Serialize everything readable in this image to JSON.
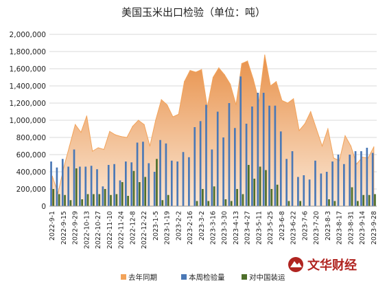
{
  "chart_data": {
    "type": "bar",
    "title": "美国玉米出口检验（单位：吨）",
    "ylim": [
      0,
      2000000
    ],
    "yticks": [
      0,
      200000,
      400000,
      600000,
      800000,
      1000000,
      1200000,
      1400000,
      1600000,
      1800000,
      2000000
    ],
    "ytick_labels": [
      "0",
      "200,000",
      "400,000",
      "600,000",
      "800,000",
      "1,000,000",
      "1,200,000",
      "1,400,000",
      "1,600,000",
      "1,800,000",
      "2,000,000"
    ],
    "grid": true,
    "legend_position": "bottom",
    "x": [
      "2022-9-1",
      "2022-9-8",
      "2022-9-15",
      "2022-9-22",
      "2022-9-29",
      "2022-10-6",
      "2022-10-13",
      "2022-10-20",
      "2022-10-27",
      "2022-11-3",
      "2022-11-10",
      "2022-11-17",
      "2022-11-24",
      "2022-12-1",
      "2022-12-8",
      "2022-12-15",
      "2022-12-22",
      "2022-12-29",
      "2023-1-5",
      "2023-1-12",
      "2023-1-19",
      "2023-1-26",
      "2023-2-2",
      "2023-2-9",
      "2023-2-16",
      "2023-2-23",
      "2023-3-2",
      "2023-3-9",
      "2023-3-16",
      "2023-3-23",
      "2023-3-30",
      "2023-4-6",
      "2023-4-13",
      "2023-4-20",
      "2023-4-27",
      "2023-5-4",
      "2023-5-11",
      "2023-5-18",
      "2023-5-25",
      "2023-6-1",
      "2023-6-8",
      "2023-6-15",
      "2023-6-22",
      "2023-6-29",
      "2023-7-6",
      "2023-7-13",
      "2023-7-20",
      "2023-7-27",
      "2023-8-3",
      "2023-8-10",
      "2023-8-17",
      "2023-8-24",
      "2023-8-31",
      "2023-9-7",
      "2023-9-14",
      "2023-9-21",
      "2023-9-28"
    ],
    "xtick_labels": [
      "2022-9-1",
      "2022-9-15",
      "2022-9-29",
      "2022-10-13",
      "2022-10-27",
      "2022-11-10",
      "2022-11-24",
      "2022-12-8",
      "2022-12-22",
      "2023-1-5",
      "2023-1-19",
      "2023-2-2",
      "2023-2-16",
      "2023-3-2",
      "2023-3-16",
      "2023-3-30",
      "2023-4-13",
      "2023-4-27",
      "2023-5-11",
      "2023-5-25",
      "2023-6-8",
      "2023-6-22",
      "2023-7-6",
      "2023-7-20",
      "2023-8-3",
      "2023-8-17",
      "2023-8-31",
      "2023-9-14",
      "2023-9-28"
    ],
    "series": [
      {
        "name": "去年同期",
        "kind": "area",
        "color": "#f2a35a",
        "values": [
          350000,
          150000,
          450000,
          700000,
          950000,
          860000,
          1050000,
          640000,
          680000,
          660000,
          870000,
          830000,
          810000,
          800000,
          930000,
          1000000,
          950000,
          700000,
          1000000,
          1240000,
          1180000,
          1040000,
          1070000,
          1450000,
          1580000,
          1560000,
          1590000,
          1150000,
          1500000,
          1610000,
          1530000,
          1420000,
          1180000,
          1660000,
          1690000,
          1480000,
          1220000,
          1760000,
          1400000,
          1450000,
          1230000,
          1200000,
          1250000,
          880000,
          960000,
          1100000,
          900000,
          700000,
          900000,
          560000,
          530000,
          820000,
          700000,
          490000,
          570000,
          560000,
          690000
        ]
      },
      {
        "name": "本周检验量",
        "kind": "bar",
        "color": "#4a78b6",
        "values": [
          520000,
          450000,
          550000,
          460000,
          660000,
          460000,
          460000,
          470000,
          430000,
          230000,
          480000,
          490000,
          300000,
          520000,
          510000,
          740000,
          750000,
          500000,
          400000,
          770000,
          730000,
          530000,
          520000,
          630000,
          570000,
          920000,
          990000,
          1180000,
          660000,
          1100000,
          800000,
          1200000,
          910000,
          1510000,
          960000,
          1160000,
          1320000,
          1320000,
          1170000,
          1170000,
          870000,
          550000,
          640000,
          340000,
          360000,
          310000,
          530000,
          380000,
          400000,
          520000,
          600000,
          490000,
          600000,
          640000,
          640000,
          680000,
          620000
        ]
      },
      {
        "name": "对中国装运",
        "kind": "bar",
        "color": "#4e6f2a",
        "values": [
          200000,
          140000,
          130000,
          70000,
          440000,
          80000,
          140000,
          140000,
          140000,
          200000,
          130000,
          140000,
          280000,
          120000,
          410000,
          280000,
          340000,
          0,
          550000,
          70000,
          130000,
          0,
          0,
          0,
          0,
          60000,
          200000,
          60000,
          230000,
          0,
          80000,
          60000,
          200000,
          140000,
          480000,
          320000,
          460000,
          420000,
          200000,
          250000,
          0,
          60000,
          0,
          60000,
          0,
          0,
          0,
          0,
          80000,
          60000,
          0,
          0,
          220000,
          60000,
          130000,
          130000,
          140000
        ]
      }
    ]
  },
  "logo": {
    "text": "文华财经"
  }
}
